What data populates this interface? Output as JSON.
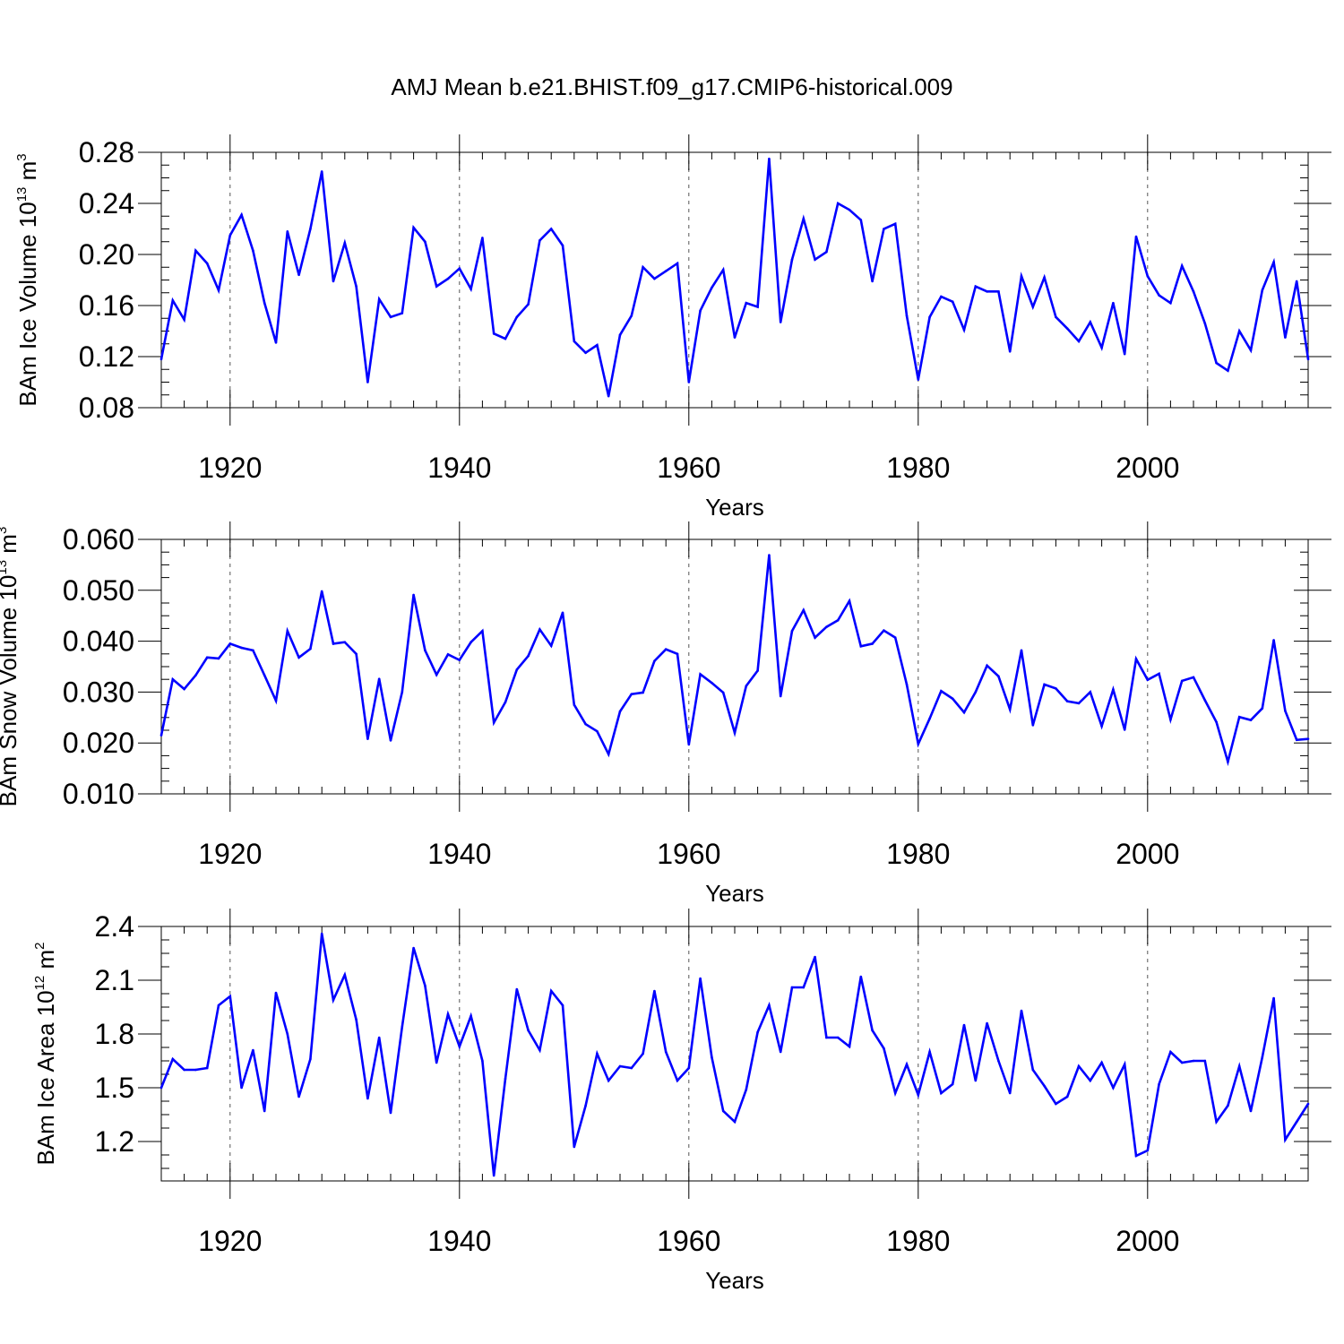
{
  "figure_title": "AMJ Mean b.e21.BHIST.f09_g17.CMIP6-historical.009",
  "colors": {
    "series": "#0000ff",
    "axis": "#000000",
    "grid": "#555555"
  },
  "chart_data": [
    {
      "type": "line",
      "title": "",
      "xlabel": "Years",
      "ylabel": {
        "text": "BAm Ice Volume 10",
        "exponent": "13",
        "unit": "m",
        "unit_exponent": "3"
      },
      "xlim": [
        1914,
        2014
      ],
      "ylim": [
        0.08,
        0.28
      ],
      "xticks": [
        "1920",
        "1940",
        "1960",
        "1980",
        "2000"
      ],
      "xtick_values": [
        1920,
        1940,
        1960,
        1980,
        2000
      ],
      "yticks": [
        "0.08",
        "0.12",
        "0.16",
        "0.20",
        "0.24",
        "0.28"
      ],
      "ytick_values": [
        0.08,
        0.12,
        0.16,
        0.2,
        0.24,
        0.28
      ],
      "series": [
        {
          "name": "BAm Ice Volume",
          "x_start": 1914,
          "values": [
            0.118,
            0.164,
            0.149,
            0.203,
            0.193,
            0.172,
            0.215,
            0.231,
            0.203,
            0.162,
            0.131,
            0.218,
            0.184,
            0.22,
            0.265,
            0.179,
            0.209,
            0.175,
            0.1,
            0.165,
            0.151,
            0.154,
            0.221,
            0.21,
            0.175,
            0.181,
            0.189,
            0.173,
            0.213,
            0.138,
            0.134,
            0.151,
            0.161,
            0.211,
            0.22,
            0.207,
            0.132,
            0.123,
            0.129,
            0.089,
            0.137,
            0.152,
            0.19,
            0.181,
            0.187,
            0.193,
            0.1,
            0.156,
            0.174,
            0.188,
            0.135,
            0.162,
            0.159,
            0.275,
            0.147,
            0.196,
            0.228,
            0.196,
            0.202,
            0.24,
            0.235,
            0.227,
            0.179,
            0.22,
            0.224,
            0.152,
            0.102,
            0.151,
            0.167,
            0.163,
            0.141,
            0.175,
            0.171,
            0.171,
            0.124,
            0.183,
            0.159,
            0.182,
            0.151,
            0.142,
            0.132,
            0.147,
            0.127,
            0.162,
            0.122,
            0.214,
            0.183,
            0.168,
            0.162,
            0.191,
            0.171,
            0.146,
            0.115,
            0.109,
            0.14,
            0.125,
            0.172,
            0.194,
            0.135,
            0.179,
            0.118
          ]
        }
      ]
    },
    {
      "type": "line",
      "title": "",
      "xlabel": "Years",
      "ylabel": {
        "text": "BAm Snow Volume 10",
        "exponent": "13",
        "unit": "m",
        "unit_exponent": "3"
      },
      "xlim": [
        1914,
        2014
      ],
      "ylim": [
        0.01,
        0.06
      ],
      "xticks": [
        "1920",
        "1940",
        "1960",
        "1980",
        "2000"
      ],
      "xtick_values": [
        1920,
        1940,
        1960,
        1980,
        2000
      ],
      "yticks": [
        "0.010",
        "0.020",
        "0.030",
        "0.040",
        "0.050",
        "0.060"
      ],
      "ytick_values": [
        0.01,
        0.02,
        0.03,
        0.04,
        0.05,
        0.06
      ],
      "series": [
        {
          "name": "BAm Snow Volume",
          "x_start": 1914,
          "values": [
            0.0215,
            0.0325,
            0.0306,
            0.0333,
            0.0368,
            0.0366,
            0.0395,
            0.0387,
            0.0382,
            0.0333,
            0.0283,
            0.042,
            0.0368,
            0.0385,
            0.0498,
            0.0395,
            0.0398,
            0.0375,
            0.0208,
            0.0326,
            0.0205,
            0.03,
            0.0491,
            0.0382,
            0.0334,
            0.0374,
            0.0363,
            0.0398,
            0.042,
            0.024,
            0.028,
            0.0344,
            0.0371,
            0.0423,
            0.0391,
            0.0456,
            0.0275,
            0.0237,
            0.0223,
            0.0178,
            0.0262,
            0.0296,
            0.0299,
            0.0361,
            0.0384,
            0.0375,
            0.0197,
            0.0335,
            0.0318,
            0.0299,
            0.022,
            0.0312,
            0.0342,
            0.0569,
            0.0292,
            0.042,
            0.0461,
            0.0407,
            0.0428,
            0.0441,
            0.0479,
            0.039,
            0.0395,
            0.0421,
            0.0407,
            0.0315,
            0.0198,
            0.0248,
            0.0302,
            0.0287,
            0.026,
            0.03,
            0.0352,
            0.0331,
            0.0266,
            0.0382,
            0.0235,
            0.0315,
            0.0307,
            0.0282,
            0.0278,
            0.03,
            0.0233,
            0.0305,
            0.0226,
            0.0365,
            0.0324,
            0.0336,
            0.0246,
            0.0322,
            0.0329,
            0.0284,
            0.0241,
            0.0163,
            0.0251,
            0.0245,
            0.0268,
            0.0402,
            0.0263,
            0.0206,
            0.0208
          ]
        }
      ]
    },
    {
      "type": "line",
      "title": "",
      "xlabel": "Years",
      "ylabel": {
        "text": "BAm Ice Area 10",
        "exponent": "12",
        "unit": "m",
        "unit_exponent": "2"
      },
      "xlim": [
        1914,
        2014
      ],
      "ylim": [
        0.98,
        2.4
      ],
      "xticks": [
        "1920",
        "1940",
        "1960",
        "1980",
        "2000"
      ],
      "xtick_values": [
        1920,
        1940,
        1960,
        1980,
        2000
      ],
      "yticks": [
        "1.2",
        "1.5",
        "1.8",
        "2.1",
        "2.4"
      ],
      "ytick_values": [
        1.2,
        1.5,
        1.8,
        2.1,
        2.4
      ],
      "series": [
        {
          "name": "BAm Ice Area",
          "x_start": 1914,
          "values": [
            1.5,
            1.66,
            1.6,
            1.6,
            1.61,
            1.96,
            2.01,
            1.5,
            1.71,
            1.37,
            2.03,
            1.8,
            1.45,
            1.66,
            2.36,
            1.99,
            2.13,
            1.88,
            1.44,
            1.78,
            1.36,
            1.84,
            2.28,
            2.07,
            1.64,
            1.91,
            1.73,
            1.9,
            1.65,
            1.01,
            1.55,
            2.05,
            1.82,
            1.71,
            2.04,
            1.96,
            1.17,
            1.4,
            1.69,
            1.54,
            1.62,
            1.61,
            1.69,
            2.04,
            1.7,
            1.54,
            1.61,
            2.11,
            1.67,
            1.37,
            1.31,
            1.49,
            1.81,
            1.96,
            1.7,
            2.06,
            2.06,
            2.23,
            1.78,
            1.78,
            1.73,
            2.12,
            1.82,
            1.72,
            1.47,
            1.63,
            1.46,
            1.7,
            1.47,
            1.52,
            1.85,
            1.54,
            1.86,
            1.65,
            1.47,
            1.93,
            1.6,
            1.51,
            1.41,
            1.45,
            1.62,
            1.54,
            1.64,
            1.5,
            1.63,
            1.12,
            1.15,
            1.52,
            1.7,
            1.64,
            1.65,
            1.65,
            1.31,
            1.4,
            1.62,
            1.37,
            1.67,
            2.0,
            1.21,
            1.31,
            1.41
          ]
        }
      ]
    }
  ]
}
